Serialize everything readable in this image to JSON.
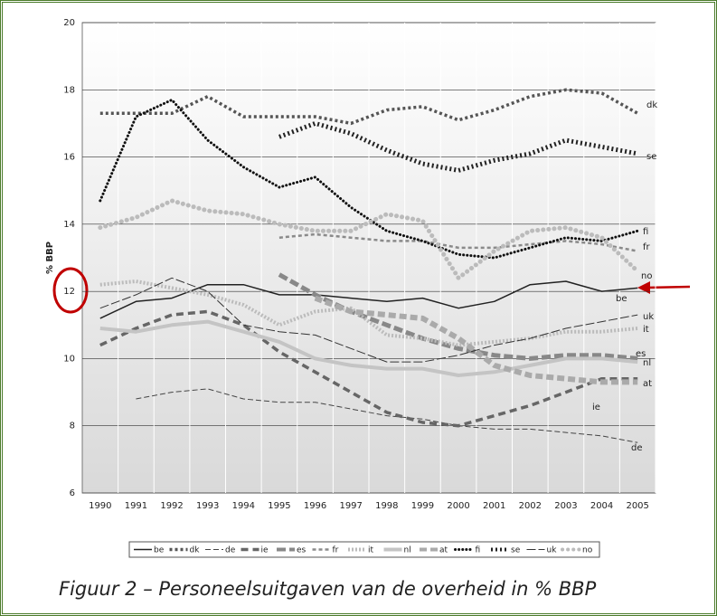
{
  "chart_data": {
    "type": "line",
    "caption": "Figuur 2 – Personeelsuitgaven van de overheid in % BBP",
    "ylabel": "% BBP",
    "x": [
      1990,
      1991,
      1992,
      1993,
      1994,
      1995,
      1996,
      1997,
      1998,
      1999,
      2000,
      2001,
      2002,
      2003,
      2004,
      2005
    ],
    "xlim": [
      1989.5,
      2005.5
    ],
    "ylim": [
      6,
      20
    ],
    "yticks": [
      6,
      8,
      10,
      12,
      14,
      16,
      18,
      20
    ],
    "grid": true,
    "series": [
      {
        "name": "be",
        "color": "#222222",
        "values": [
          11.2,
          11.7,
          11.8,
          12.2,
          12.2,
          11.9,
          11.9,
          11.8,
          11.7,
          11.8,
          11.5,
          11.7,
          12.2,
          12.3,
          12.0,
          12.1
        ]
      },
      {
        "name": "dk",
        "color": "#555555",
        "values": [
          17.3,
          17.3,
          17.3,
          17.8,
          17.2,
          17.2,
          17.2,
          17.0,
          17.4,
          17.5,
          17.1,
          17.4,
          17.8,
          18.0,
          17.9,
          17.3
        ]
      },
      {
        "name": "de",
        "color": "#444444",
        "values": [
          null,
          8.8,
          9.0,
          9.1,
          8.8,
          8.7,
          8.7,
          8.5,
          8.3,
          8.2,
          8.0,
          7.9,
          7.9,
          7.8,
          7.7,
          7.5
        ]
      },
      {
        "name": "ie",
        "color": "#666666",
        "values": [
          10.4,
          10.9,
          11.3,
          11.4,
          11.0,
          10.2,
          9.6,
          9.0,
          8.4,
          8.1,
          8.0,
          8.3,
          8.6,
          9.0,
          9.4,
          9.4
        ]
      },
      {
        "name": "es",
        "color": "#888888",
        "values": [
          null,
          null,
          null,
          null,
          null,
          12.5,
          11.9,
          11.4,
          11.0,
          10.6,
          10.3,
          10.1,
          10.0,
          10.1,
          10.1,
          10.0
        ]
      },
      {
        "name": "fr",
        "color": "#8a8a8a",
        "values": [
          null,
          null,
          null,
          null,
          null,
          13.6,
          13.7,
          13.6,
          13.5,
          13.5,
          13.3,
          13.3,
          13.4,
          13.5,
          13.4,
          13.2
        ]
      },
      {
        "name": "it",
        "color": "#bbbbbb",
        "values": [
          12.2,
          12.3,
          12.1,
          11.9,
          11.6,
          11.0,
          11.4,
          11.5,
          10.7,
          10.6,
          10.4,
          10.5,
          10.6,
          10.8,
          10.8,
          10.9
        ]
      },
      {
        "name": "nl",
        "color": "#c4c4c4",
        "values": [
          10.9,
          10.8,
          11.0,
          11.1,
          10.8,
          10.5,
          10.0,
          9.8,
          9.7,
          9.7,
          9.5,
          9.6,
          9.8,
          10.0,
          10.0,
          9.9
        ]
      },
      {
        "name": "at",
        "color": "#aaaaaa",
        "values": [
          null,
          null,
          null,
          null,
          null,
          null,
          11.8,
          11.4,
          11.3,
          11.2,
          10.6,
          9.8,
          9.5,
          9.4,
          9.3,
          9.3
        ]
      },
      {
        "name": "fi",
        "color": "#111111",
        "values": [
          14.7,
          17.2,
          17.7,
          16.5,
          15.7,
          15.1,
          15.4,
          14.5,
          13.8,
          13.5,
          13.1,
          13.0,
          13.3,
          13.6,
          13.5,
          13.8
        ]
      },
      {
        "name": "se",
        "color": "#222222",
        "values": [
          null,
          null,
          null,
          null,
          null,
          16.6,
          17.0,
          16.7,
          16.2,
          15.8,
          15.6,
          15.9,
          16.1,
          16.5,
          16.3,
          16.1
        ]
      },
      {
        "name": "uk",
        "color": "#333333",
        "values": [
          11.5,
          11.9,
          12.4,
          12.0,
          11.0,
          10.8,
          10.7,
          10.3,
          9.9,
          9.9,
          10.1,
          10.4,
          10.6,
          10.9,
          11.1,
          11.3
        ]
      },
      {
        "name": "no",
        "color": "#bbbbbb",
        "values": [
          13.9,
          14.2,
          14.7,
          14.4,
          14.3,
          14.0,
          13.8,
          13.8,
          14.3,
          14.1,
          12.4,
          13.2,
          13.8,
          13.9,
          13.6,
          12.6
        ]
      }
    ]
  }
}
